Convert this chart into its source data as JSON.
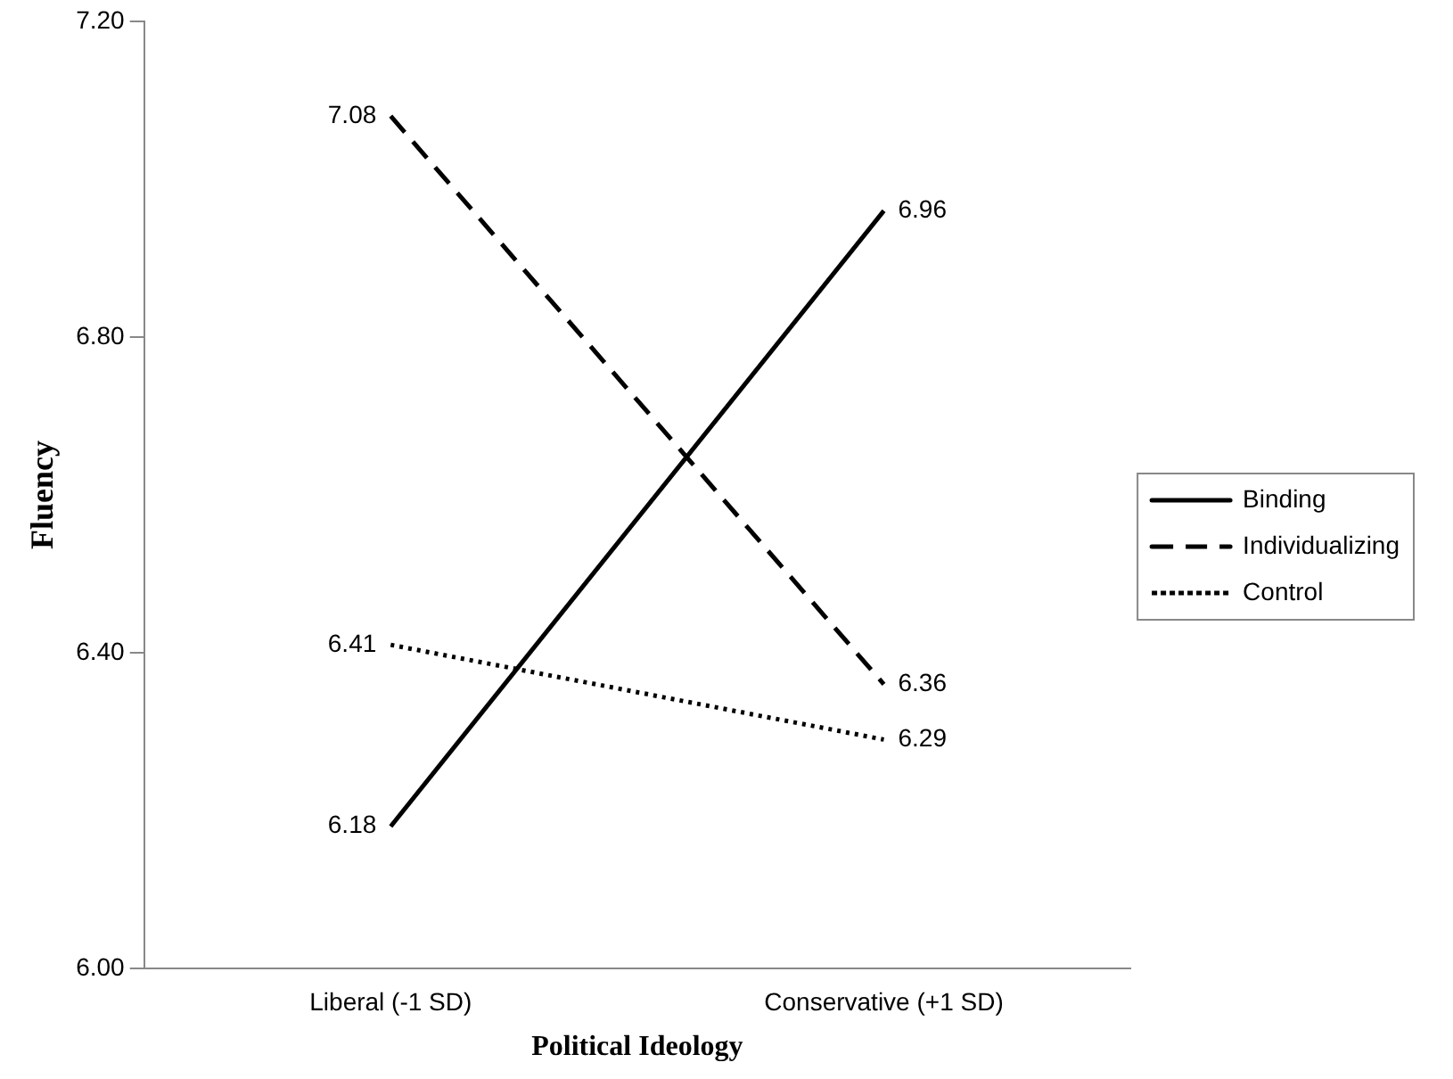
{
  "chart_data": {
    "type": "line",
    "xlabel": "Political Ideology",
    "ylabel": "Fluency",
    "categories": [
      "Liberal (-1 SD)",
      "Conservative (+1 SD)"
    ],
    "series": [
      {
        "name": "Binding",
        "color": "#000000",
        "values": [
          6.18,
          6.96
        ],
        "line_style": "solid"
      },
      {
        "name": "Individualizing",
        "color": "#000000",
        "values": [
          7.08,
          6.36
        ],
        "line_style": "dashed"
      },
      {
        "name": "Control",
        "color": "#000000",
        "values": [
          6.41,
          6.29
        ],
        "line_style": "dotted"
      }
    ],
    "ylim": [
      6.0,
      7.2
    ],
    "yticks": [
      {
        "value": 6.0,
        "label": "6.00"
      },
      {
        "value": 6.4,
        "label": "6.40"
      },
      {
        "value": 6.8,
        "label": "6.80"
      },
      {
        "value": 7.2,
        "label": "7.20"
      }
    ],
    "grid": false,
    "legend": "right",
    "marker": "none",
    "data_labels": true
  }
}
